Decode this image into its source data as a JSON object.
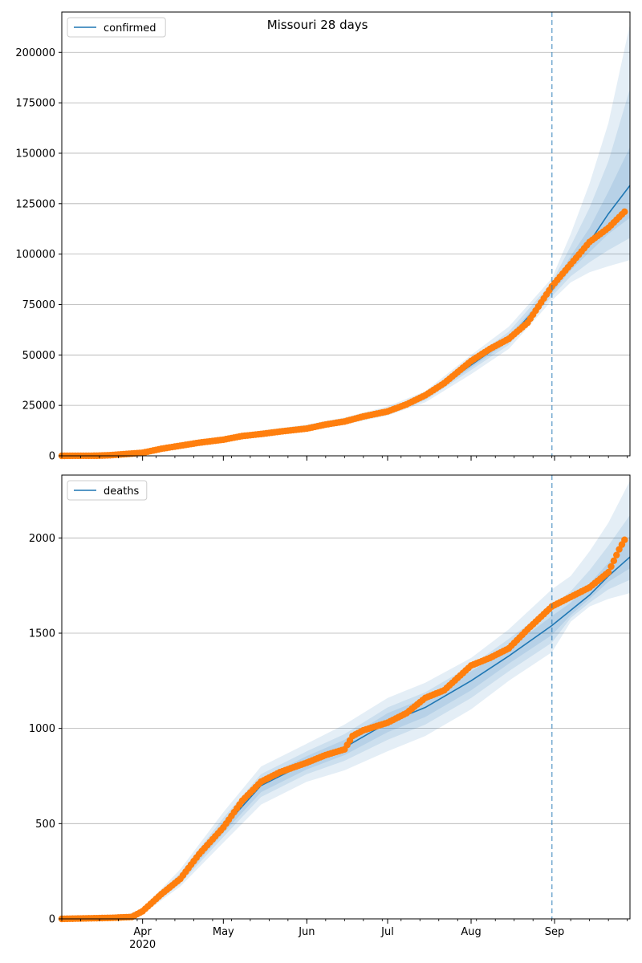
{
  "chart_data": [
    {
      "type": "line",
      "title": "Missouri 28 days",
      "legend": {
        "label": "confirmed",
        "placement": "top-left"
      },
      "xlabel": "",
      "ylabel": "",
      "xlim": [
        "2020-03-02",
        "2020-09-29"
      ],
      "ylim": [
        0,
        220000
      ],
      "yticks": [
        0,
        25000,
        50000,
        75000,
        100000,
        125000,
        150000,
        175000,
        200000
      ],
      "grid": "y",
      "forecast_start": "2020-08-31",
      "colors": {
        "model": "#1f77b4",
        "observed": "#ff7f0e",
        "band": "#1f77b4"
      },
      "observed": {
        "x": [
          "2020-03-02",
          "2020-03-15",
          "2020-03-20",
          "2020-03-25",
          "2020-04-01",
          "2020-04-08",
          "2020-04-15",
          "2020-04-22",
          "2020-05-01",
          "2020-05-08",
          "2020-05-15",
          "2020-05-22",
          "2020-06-01",
          "2020-06-08",
          "2020-06-15",
          "2020-06-22",
          "2020-07-01",
          "2020-07-08",
          "2020-07-15",
          "2020-07-22",
          "2020-08-01",
          "2020-08-08",
          "2020-08-15",
          "2020-08-22",
          "2020-08-31",
          "2020-09-07",
          "2020-09-14",
          "2020-09-21",
          "2020-09-27"
        ],
        "y": [
          0,
          50,
          300,
          800,
          1500,
          3500,
          5000,
          6500,
          8000,
          9800,
          10800,
          12000,
          13500,
          15500,
          17000,
          19500,
          22000,
          25500,
          30000,
          36000,
          47000,
          53000,
          58000,
          66000,
          84000,
          95000,
          106000,
          113000,
          121000
        ]
      },
      "model": {
        "x": [
          "2020-03-02",
          "2020-03-20",
          "2020-04-01",
          "2020-04-15",
          "2020-05-01",
          "2020-05-15",
          "2020-06-01",
          "2020-06-15",
          "2020-07-01",
          "2020-07-15",
          "2020-08-01",
          "2020-08-15",
          "2020-08-31",
          "2020-09-07",
          "2020-09-14",
          "2020-09-21",
          "2020-09-29"
        ],
        "y": [
          0,
          300,
          1500,
          5000,
          8000,
          10800,
          13500,
          17000,
          22000,
          29000,
          45000,
          58000,
          82000,
          95000,
          106000,
          120000,
          134000
        ]
      },
      "bands": [
        {
          "lower": [
            0,
            200,
            1000,
            4000,
            7000,
            9500,
            12000,
            15500,
            20000,
            26500,
            40500,
            53000,
            77000,
            86000,
            91000,
            94000,
            97000
          ],
          "upper": [
            0,
            400,
            2000,
            6000,
            9500,
            12500,
            15500,
            19000,
            24500,
            32000,
            50000,
            64000,
            88000,
            110000,
            135000,
            165000,
            214000
          ]
        },
        {
          "lower": [
            0,
            250,
            1200,
            4400,
            7400,
            10000,
            12600,
            16100,
            20800,
            27500,
            42500,
            55000,
            79000,
            89000,
            96000,
            102000,
            108000
          ],
          "upper": [
            0,
            350,
            1800,
            5600,
            8800,
            11700,
            14600,
            18100,
            23400,
            30700,
            48000,
            61500,
            86000,
            104000,
            123000,
            146000,
            182000
          ]
        },
        {
          "lower": [
            0,
            270,
            1350,
            4700,
            7700,
            10400,
            13000,
            16500,
            21400,
            28300,
            43700,
            56500,
            80500,
            92000,
            101000,
            110000,
            118000
          ],
          "upper": [
            0,
            330,
            1650,
            5300,
            8300,
            11200,
            14000,
            17500,
            22600,
            29700,
            46300,
            59500,
            83500,
            99000,
            113000,
            131000,
            153000
          ]
        }
      ]
    },
    {
      "type": "line",
      "title": "",
      "legend": {
        "label": "deaths",
        "placement": "top-left"
      },
      "xlabel": "",
      "ylabel": "",
      "xlim": [
        "2020-03-02",
        "2020-09-29"
      ],
      "ylim": [
        0,
        2330
      ],
      "yticks": [
        0,
        500,
        1000,
        1500,
        2000
      ],
      "grid": "y",
      "forecast_start": "2020-08-31",
      "xtick_labels": [
        {
          "date": "2020-04-01",
          "label": "Apr",
          "sub": "2020"
        },
        {
          "date": "2020-05-01",
          "label": "May"
        },
        {
          "date": "2020-06-01",
          "label": "Jun"
        },
        {
          "date": "2020-07-01",
          "label": "Jul"
        },
        {
          "date": "2020-08-01",
          "label": "Aug"
        },
        {
          "date": "2020-09-01",
          "label": "Sep"
        }
      ],
      "colors": {
        "model": "#1f77b4",
        "observed": "#ff7f0e",
        "band": "#1f77b4"
      },
      "observed": {
        "x": [
          "2020-03-02",
          "2020-03-20",
          "2020-03-28",
          "2020-04-01",
          "2020-04-08",
          "2020-04-15",
          "2020-04-22",
          "2020-05-01",
          "2020-05-08",
          "2020-05-15",
          "2020-05-22",
          "2020-06-01",
          "2020-06-08",
          "2020-06-15",
          "2020-06-18",
          "2020-06-22",
          "2020-07-01",
          "2020-07-08",
          "2020-07-15",
          "2020-07-22",
          "2020-08-01",
          "2020-08-08",
          "2020-08-15",
          "2020-08-22",
          "2020-08-31",
          "2020-09-07",
          "2020-09-14",
          "2020-09-21",
          "2020-09-25",
          "2020-09-27"
        ],
        "y": [
          0,
          5,
          10,
          40,
          130,
          210,
          340,
          480,
          620,
          720,
          770,
          820,
          860,
          890,
          960,
          990,
          1030,
          1080,
          1160,
          1200,
          1330,
          1370,
          1420,
          1520,
          1640,
          1690,
          1740,
          1820,
          1940,
          1990
        ]
      },
      "model": {
        "x": [
          "2020-03-02",
          "2020-03-25",
          "2020-04-01",
          "2020-04-15",
          "2020-05-01",
          "2020-05-15",
          "2020-06-01",
          "2020-06-15",
          "2020-07-01",
          "2020-07-15",
          "2020-08-01",
          "2020-08-15",
          "2020-08-31",
          "2020-09-07",
          "2020-09-14",
          "2020-09-21",
          "2020-09-29"
        ],
        "y": [
          0,
          10,
          40,
          210,
          480,
          700,
          820,
          900,
          1030,
          1110,
          1250,
          1380,
          1540,
          1620,
          1700,
          1800,
          1900
        ]
      },
      "bands": [
        {
          "lower": [
            0,
            5,
            25,
            170,
            400,
            600,
            720,
            780,
            880,
            960,
            1100,
            1250,
            1400,
            1560,
            1640,
            1680,
            1710
          ],
          "upper": [
            0,
            15,
            55,
            260,
            560,
            800,
            920,
            1020,
            1160,
            1240,
            1370,
            1520,
            1730,
            1800,
            1930,
            2080,
            2300
          ]
        },
        {
          "lower": [
            0,
            7,
            30,
            185,
            430,
            640,
            760,
            830,
            940,
            1020,
            1160,
            1300,
            1450,
            1580,
            1660,
            1730,
            1780
          ],
          "upper": [
            0,
            13,
            50,
            240,
            530,
            760,
            880,
            970,
            1110,
            1190,
            1330,
            1470,
            1640,
            1720,
            1830,
            1960,
            2120
          ]
        },
        {
          "lower": [
            0,
            8,
            34,
            195,
            450,
            665,
            785,
            860,
            980,
            1060,
            1200,
            1340,
            1490,
            1595,
            1680,
            1770,
            1840
          ],
          "upper": [
            0,
            12,
            46,
            225,
            510,
            735,
            855,
            940,
            1080,
            1160,
            1300,
            1420,
            1590,
            1660,
            1760,
            1870,
            2000
          ]
        }
      ]
    }
  ]
}
